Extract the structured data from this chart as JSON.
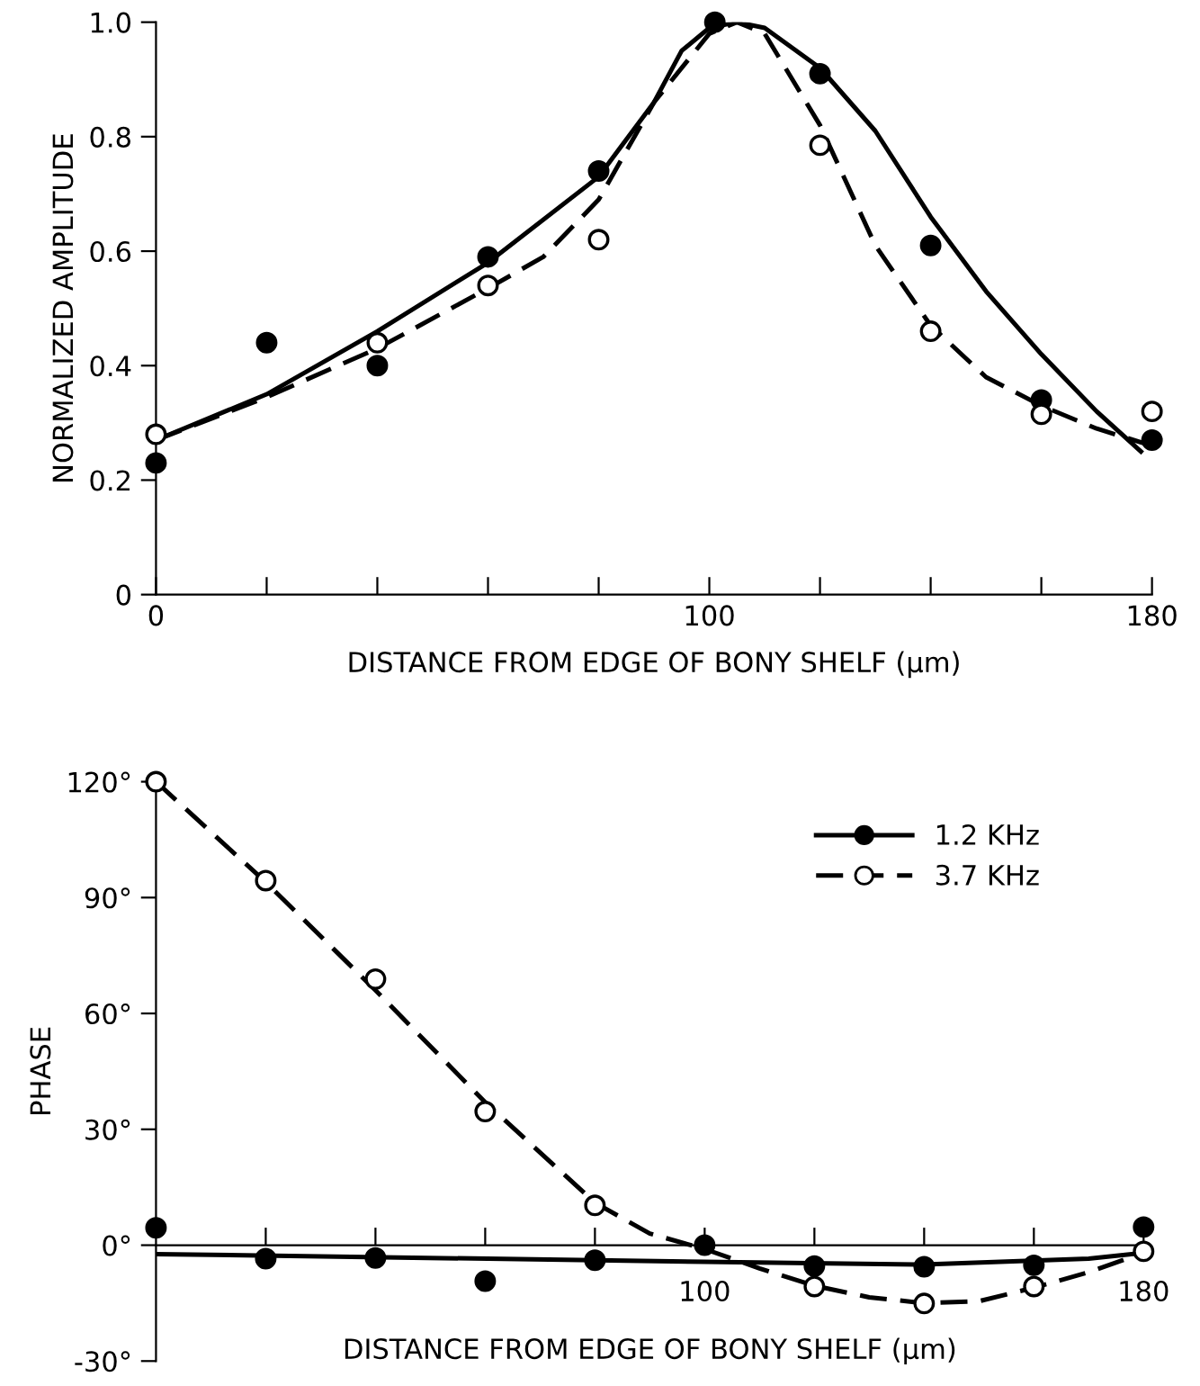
{
  "chart_data": [
    {
      "type": "scatter",
      "xlabel": "DISTANCE FROM EDGE OF BONY SHELF (μm)",
      "ylabel": "NORMALIZED AMPLITUDE",
      "xlim": [
        0,
        180
      ],
      "ylim": [
        0,
        1.0
      ],
      "xticks": [
        0,
        {
          "value": 20,
          "label": null
        },
        {
          "value": 40,
          "label": null
        },
        {
          "value": 60,
          "label": null
        },
        {
          "value": 80,
          "label": null
        },
        100,
        {
          "value": 120,
          "label": null
        },
        {
          "value": 140,
          "label": null
        },
        {
          "value": 160,
          "label": null
        },
        180
      ],
      "yticks": [
        0,
        0.2,
        0.4,
        0.6,
        0.8,
        {
          "value": 1.0,
          "label": "1.0"
        }
      ],
      "grid": false,
      "legend": false,
      "series": [
        {
          "type": "line",
          "color": "#000000",
          "line_style": "solid",
          "marker": "none",
          "x": [
            0,
            20,
            40,
            60,
            80,
            90,
            95,
            100,
            105,
            110,
            120,
            130,
            140,
            150,
            160,
            170,
            178
          ],
          "values": [
            0.27,
            0.35,
            0.46,
            0.58,
            0.73,
            0.86,
            0.95,
            0.99,
            1.0,
            0.99,
            0.92,
            0.81,
            0.66,
            0.53,
            0.42,
            0.32,
            0.25
          ]
        },
        {
          "type": "line",
          "color": "#000000",
          "line_style": "dashed",
          "marker": "none",
          "x": [
            0,
            20,
            40,
            60,
            70,
            80,
            90,
            100,
            105,
            110,
            120,
            130,
            140,
            150,
            160,
            170,
            180
          ],
          "values": [
            0.27,
            0.345,
            0.43,
            0.535,
            0.59,
            0.69,
            0.86,
            0.98,
            1.0,
            0.98,
            0.82,
            0.61,
            0.47,
            0.38,
            0.33,
            0.29,
            0.26
          ]
        },
        {
          "color": "#000000",
          "marker": "circle",
          "x": [
            0,
            20,
            40,
            60,
            80,
            101,
            120,
            140,
            160,
            180
          ],
          "values": [
            0.23,
            0.44,
            0.4,
            0.59,
            0.74,
            1.0,
            0.91,
            0.61,
            0.34,
            0.27
          ]
        },
        {
          "color": "#ffffff",
          "marker": "circle",
          "x": [
            0,
            40,
            60,
            80,
            120,
            140,
            160,
            180
          ],
          "values": [
            0.28,
            0.44,
            0.54,
            0.62,
            0.785,
            0.46,
            0.315,
            0.32
          ]
        }
      ]
    },
    {
      "type": "scatter",
      "xlabel": "DISTANCE FROM EDGE OF BONY SHELF (μm)",
      "ylabel": "PHASE",
      "xlim": [
        0,
        180
      ],
      "ylim": [
        -30,
        120
      ],
      "xticks": [
        {
          "value": 20,
          "label": null
        },
        {
          "value": 40,
          "label": null
        },
        {
          "value": 60,
          "label": null
        },
        {
          "value": 80,
          "label": null
        },
        100,
        {
          "value": 120,
          "label": null
        },
        {
          "value": 140,
          "label": null
        },
        {
          "value": 160,
          "label": null
        },
        180
      ],
      "yticks": [
        {
          "value": -30,
          "label": "-30°"
        },
        {
          "value": 0,
          "label": "0°"
        },
        {
          "value": 30,
          "label": "30°"
        },
        {
          "value": 60,
          "label": "60°"
        },
        {
          "value": 90,
          "label": "90°"
        },
        {
          "value": 120,
          "label": "120°"
        }
      ],
      "grid": false,
      "legend": "top right",
      "series": [
        {
          "type": "line",
          "color": "#000000",
          "line_style": "solid",
          "marker": "none",
          "x": [
            0,
            100,
            140,
            170,
            180
          ],
          "values": [
            -2.3,
            -4.3,
            -5.0,
            -3.5,
            -2.0
          ]
        },
        {
          "type": "line",
          "color": "#000000",
          "line_style": "dashed",
          "marker": "none",
          "x": [
            0,
            20,
            40,
            60,
            80,
            90,
            100,
            110,
            120,
            130,
            140,
            150,
            160,
            170,
            180
          ],
          "values": [
            120,
            94,
            66,
            37,
            11,
            3,
            -1,
            -6,
            -10.5,
            -13.5,
            -15,
            -14.5,
            -11,
            -7,
            -2
          ]
        },
        {
          "name": "1.2 KHz",
          "color": "#000000",
          "marker": "circle",
          "line_style": "solid",
          "x": [
            0,
            20,
            40,
            60,
            80,
            100,
            120,
            140,
            160,
            180
          ],
          "values": [
            4.5,
            -3.5,
            -3.3,
            -9.3,
            -3.9,
            0,
            -5.4,
            -5.6,
            -5.2,
            4.7
          ]
        },
        {
          "name": "3.7 KHz",
          "color": "#ffffff",
          "marker": "circle",
          "line_style": "dashed",
          "x": [
            0,
            20,
            40,
            60,
            80,
            120,
            140,
            160,
            180
          ],
          "values": [
            120,
            94.4,
            68.9,
            34.6,
            10.3,
            -10.7,
            -15.1,
            -10.7,
            -1.6
          ]
        }
      ]
    }
  ]
}
